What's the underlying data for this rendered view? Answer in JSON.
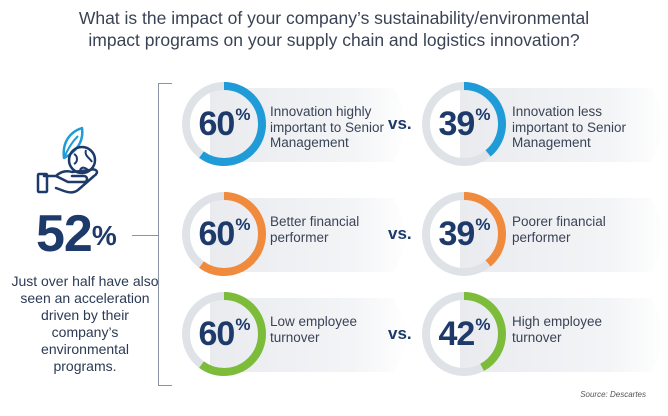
{
  "title": {
    "line1": "What is the impact of your company’s sustainability/environmental",
    "line2": "impact programs on your supply chain and logistics innovation?"
  },
  "summary": {
    "value": "52",
    "unit": "%",
    "description": "Just over half have also seen an acceleration driven by their company’s environmental programs."
  },
  "vs_label": "vs.",
  "source": "Source: Descartes",
  "icon": "hand-holding-plant-icon",
  "colors": {
    "blue": "#1f9bd7",
    "orange": "#f08a3c",
    "green": "#7cbc3a",
    "navy": "#1d3a6b"
  },
  "chart_data": {
    "type": "comparison",
    "unit": "%",
    "rows": [
      {
        "color": "#1f9bd7",
        "left": {
          "value": 60,
          "label": "Innovation highly important to Senior Management"
        },
        "right": {
          "value": 39,
          "label": "Innovation less important to Senior Management"
        }
      },
      {
        "color": "#f08a3c",
        "left": {
          "value": 60,
          "label": "Better financial performer"
        },
        "right": {
          "value": 39,
          "label": "Poorer financial performer"
        }
      },
      {
        "color": "#7cbc3a",
        "left": {
          "value": 60,
          "label": "Low employee turnover"
        },
        "right": {
          "value": 42,
          "label": "High employee turnover"
        }
      }
    ]
  }
}
